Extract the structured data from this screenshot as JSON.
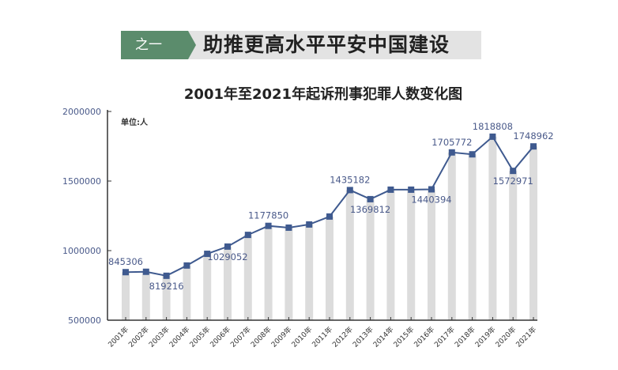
{
  "banner": {
    "tag": "之一",
    "text": "助推更高水平平安中国建设",
    "tag_color": "#5b8c6c",
    "bg_color": "#e3e3e3"
  },
  "chart_data": {
    "type": "bar",
    "title": "2001年至2021年起诉刑事犯罪人数变化图",
    "unit_label": "单位:人",
    "xlabel": "",
    "ylabel": "",
    "ylim": [
      500000,
      2000000
    ],
    "yticks": [
      500000,
      1000000,
      1500000,
      2000000
    ],
    "ytick_labels": [
      "500000",
      "1000000",
      "1500000",
      "2000000"
    ],
    "grid": false,
    "legend": null,
    "categories": [
      "2001年",
      "2002年",
      "2003年",
      "2004年",
      "2005年",
      "2006年",
      "2007年",
      "2008年",
      "2009年",
      "2010年",
      "2011年",
      "2012年",
      "2013年",
      "2014年",
      "2015年",
      "2016年",
      "2017年",
      "2018年",
      "2019年",
      "2020年",
      "2021年"
    ],
    "series": [
      {
        "name": "起诉刑事犯罪人数",
        "render": "bar+line",
        "bar_color": "#dcdcdc",
        "line_color": "#3f5a8f",
        "values": [
          845306,
          848000,
          819216,
          893000,
          977000,
          1029052,
          1113000,
          1177850,
          1165000,
          1188000,
          1245000,
          1435182,
          1369812,
          1438000,
          1438000,
          1440394,
          1705772,
          1692000,
          1818808,
          1572971,
          1748962
        ]
      }
    ],
    "data_labels": [
      {
        "category": "2001年",
        "text": "845306",
        "position": "above"
      },
      {
        "category": "2003年",
        "text": "819216",
        "position": "below"
      },
      {
        "category": "2006年",
        "text": "1029052",
        "position": "below"
      },
      {
        "category": "2008年",
        "text": "1177850",
        "position": "above"
      },
      {
        "category": "2012年",
        "text": "1435182",
        "position": "above"
      },
      {
        "category": "2013年",
        "text": "1369812",
        "position": "below"
      },
      {
        "category": "2016年",
        "text": "1440394",
        "position": "below"
      },
      {
        "category": "2017年",
        "text": "1705772",
        "position": "above"
      },
      {
        "category": "2019年",
        "text": "1818808",
        "position": "above"
      },
      {
        "category": "2020年",
        "text": "1572971",
        "position": "below"
      },
      {
        "category": "2021年",
        "text": "1748962",
        "position": "above"
      }
    ]
  }
}
